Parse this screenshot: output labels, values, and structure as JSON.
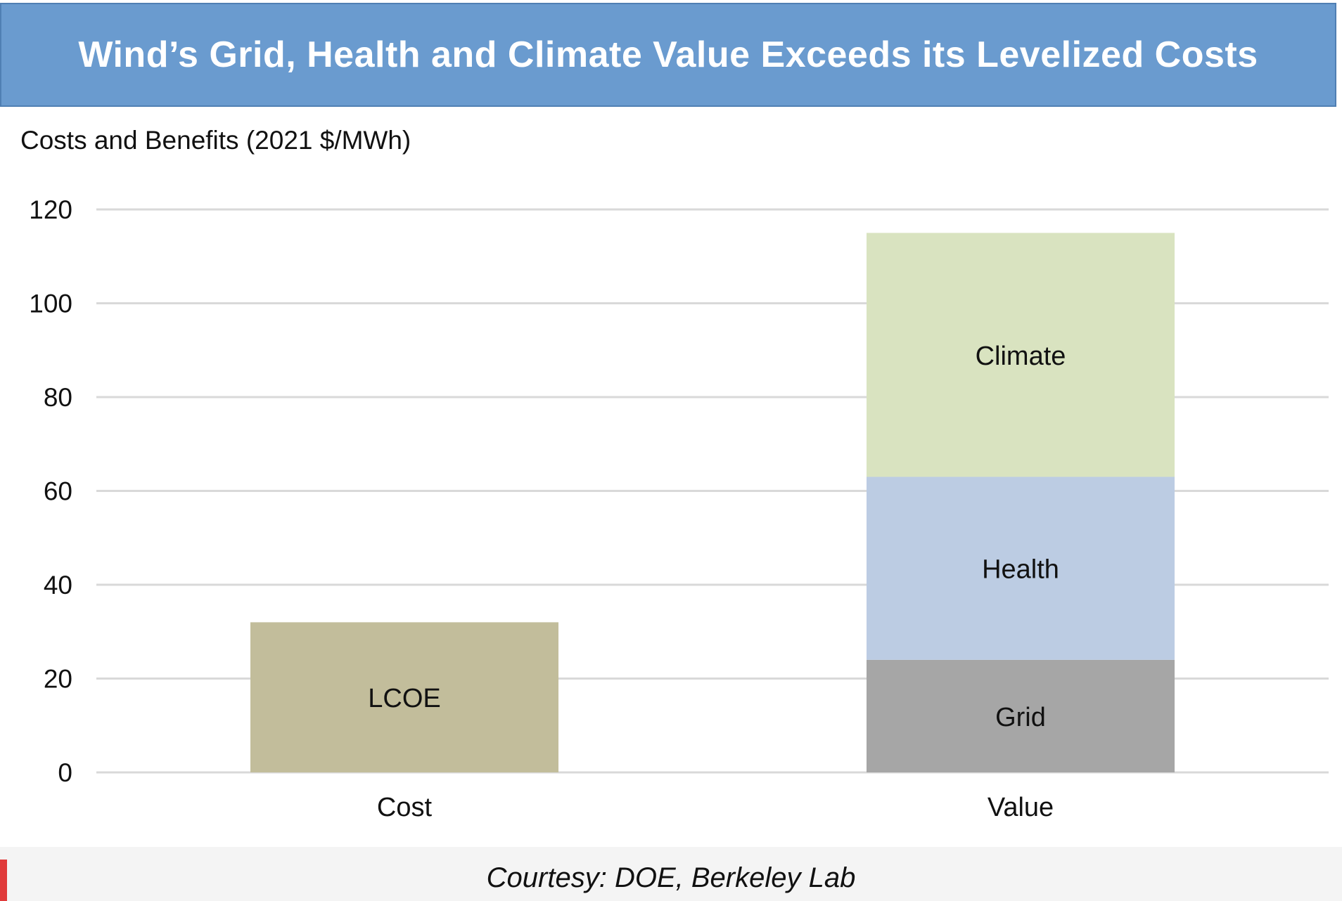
{
  "banner": {
    "title": "Wind’s Grid, Health and Climate Value Exceeds its Levelized Costs",
    "color": "#6a9bcf"
  },
  "chart_data": {
    "type": "bar",
    "stacked": true,
    "ylabel": "Costs and Benefits (2021 $/MWh)",
    "ylim": [
      0,
      120
    ],
    "yticks": [
      0,
      20,
      40,
      60,
      80,
      100,
      120
    ],
    "grid": true,
    "categories": [
      "Cost",
      "Value"
    ],
    "series": [
      {
        "name": "LCOE",
        "values": [
          32,
          0
        ],
        "color": "#c2bd9b"
      },
      {
        "name": "Grid",
        "values": [
          0,
          24
        ],
        "color": "#a6a6a6"
      },
      {
        "name": "Health",
        "values": [
          0,
          39
        ],
        "color": "#bccce3"
      },
      {
        "name": "Climate",
        "values": [
          0,
          52
        ],
        "color": "#d9e3c0"
      }
    ]
  },
  "footer": {
    "credit": "Courtesy: DOE, Berkeley Lab"
  }
}
